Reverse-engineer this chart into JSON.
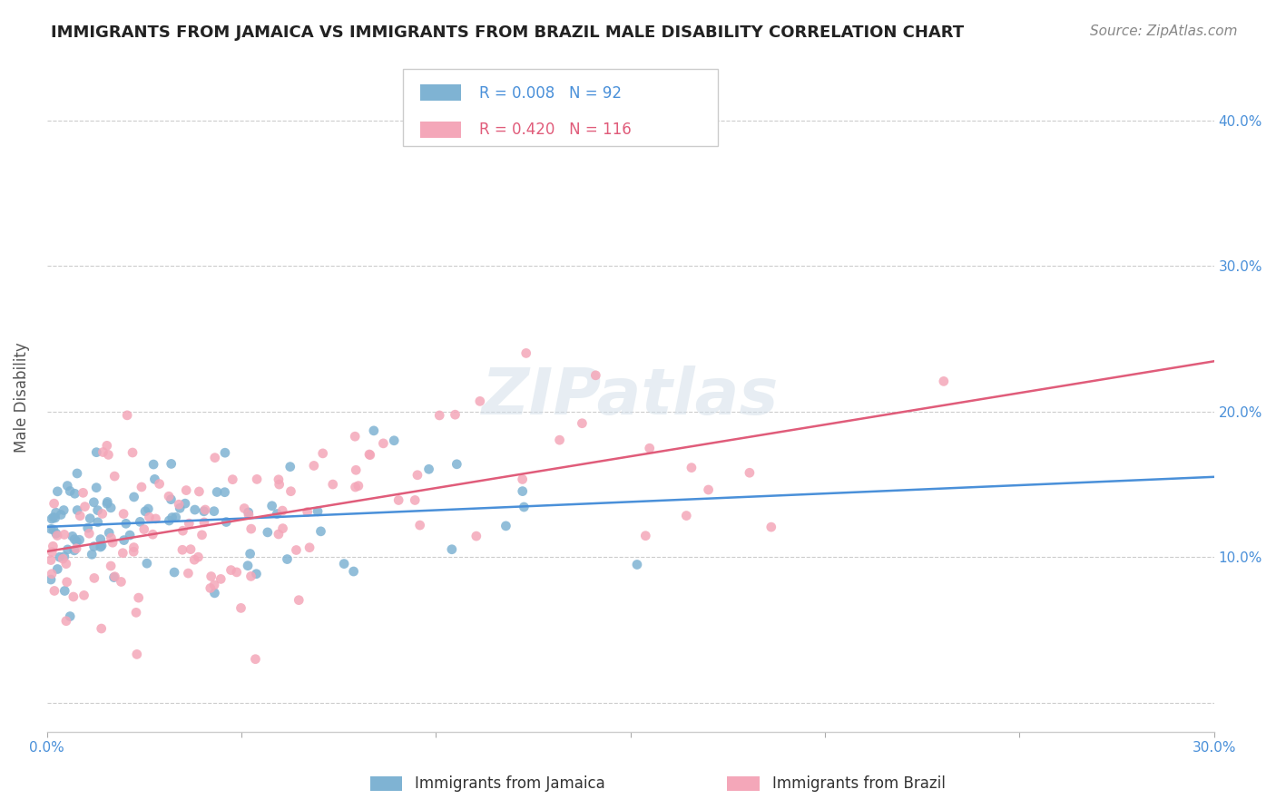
{
  "title": "IMMIGRANTS FROM JAMAICA VS IMMIGRANTS FROM BRAZIL MALE DISABILITY CORRELATION CHART",
  "source": "Source: ZipAtlas.com",
  "ylabel": "Male Disability",
  "xlim": [
    0.0,
    0.3
  ],
  "ylim": [
    -0.02,
    0.44
  ],
  "xtick_positions": [
    0.0,
    0.05,
    0.1,
    0.15,
    0.2,
    0.25,
    0.3
  ],
  "xticklabels": [
    "0.0%",
    "",
    "",
    "",
    "",
    "",
    "30.0%"
  ],
  "ytick_positions": [
    0.0,
    0.1,
    0.2,
    0.3,
    0.4
  ],
  "yticklabels": [
    "",
    "10.0%",
    "20.0%",
    "30.0%",
    "40.0%"
  ],
  "jamaica_R": 0.008,
  "jamaica_N": 92,
  "brazil_R": 0.42,
  "brazil_N": 116,
  "color_jamaica": "#7fb3d3",
  "color_brazil": "#f4a7b9",
  "color_jamaica_line": "#4a90d9",
  "color_brazil_line": "#e05c7a",
  "legend_label_jamaica": "Immigrants from Jamaica",
  "legend_label_brazil": "Immigrants from Brazil",
  "watermark": "ZIPatlas",
  "background_color": "#ffffff",
  "grid_color": "#cccccc",
  "title_color": "#222222",
  "axis_label_color": "#555555",
  "tick_label_color": "#4a90d9",
  "seed": 42
}
